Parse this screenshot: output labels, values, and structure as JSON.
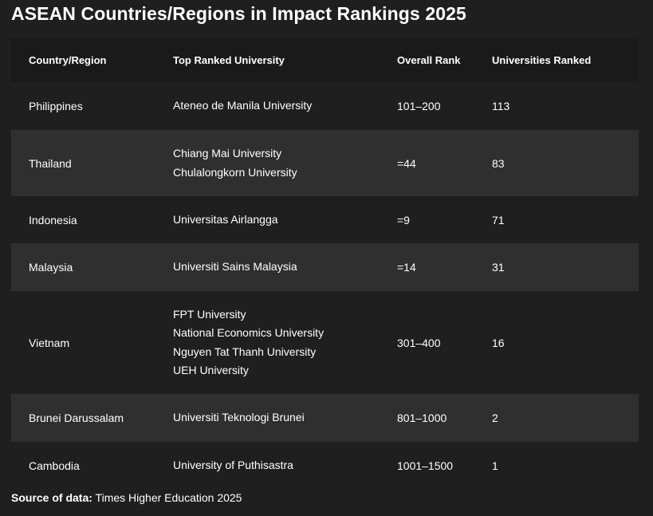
{
  "title": "ASEAN Countries/Regions in Impact Rankings 2025",
  "headers": [
    "Country/Region",
    "Top Ranked University",
    "Overall Rank",
    "Universities Ranked"
  ],
  "rows": [
    {
      "country": "Philippines",
      "universities": [
        "Ateneo de Manila University"
      ],
      "rank": "101–200",
      "count": "113"
    },
    {
      "country": "Thailand",
      "universities": [
        "Chiang Mai University",
        "Chulalongkorn University"
      ],
      "rank": "=44",
      "count": "83"
    },
    {
      "country": "Indonesia",
      "universities": [
        "Universitas Airlangga"
      ],
      "rank": "=9",
      "count": "71"
    },
    {
      "country": "Malaysia",
      "universities": [
        "Universiti Sains Malaysia"
      ],
      "rank": "=14",
      "count": "31"
    },
    {
      "country": "Vietnam",
      "universities": [
        "FPT University",
        "National Economics University",
        "Nguyen Tat Thanh University",
        "UEH University"
      ],
      "rank": "301–400",
      "count": "16"
    },
    {
      "country": "Brunei Darussalam",
      "universities": [
        "Universiti Teknologi Brunei"
      ],
      "rank": "801–1000",
      "count": "2"
    },
    {
      "country": "Cambodia",
      "universities": [
        "University of Puthisastra"
      ],
      "rank": "1001–1500",
      "count": "1"
    }
  ],
  "source": {
    "label": "Source of data:",
    "text": "Times Higher Education 2025"
  }
}
